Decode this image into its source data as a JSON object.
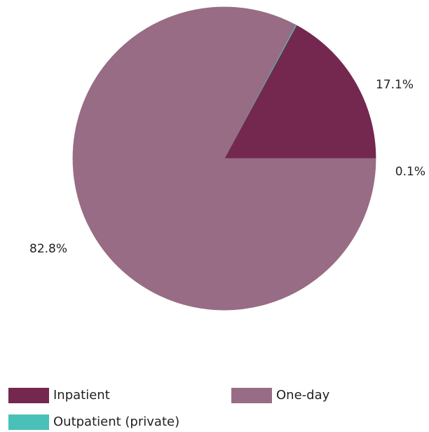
{
  "chart_data": {
    "type": "pie",
    "title": "",
    "series": [
      {
        "categories": [
          "Inpatient",
          "Outpatient (private)",
          "One-day"
        ],
        "values": [
          17.1,
          0.1,
          82.8
        ],
        "labels": [
          "17.1%",
          "0.1%",
          "82.8%"
        ],
        "colors": [
          "#74284f",
          "#49c1b8",
          "#986c84"
        ]
      }
    ],
    "legend": {
      "placement": "bottom",
      "entries": [
        {
          "label": "Inpatient",
          "color": "#74284f"
        },
        {
          "label": "One-day",
          "color": "#986c84"
        },
        {
          "label": "Outpatient (private)",
          "color": "#49c1b8"
        }
      ]
    }
  }
}
